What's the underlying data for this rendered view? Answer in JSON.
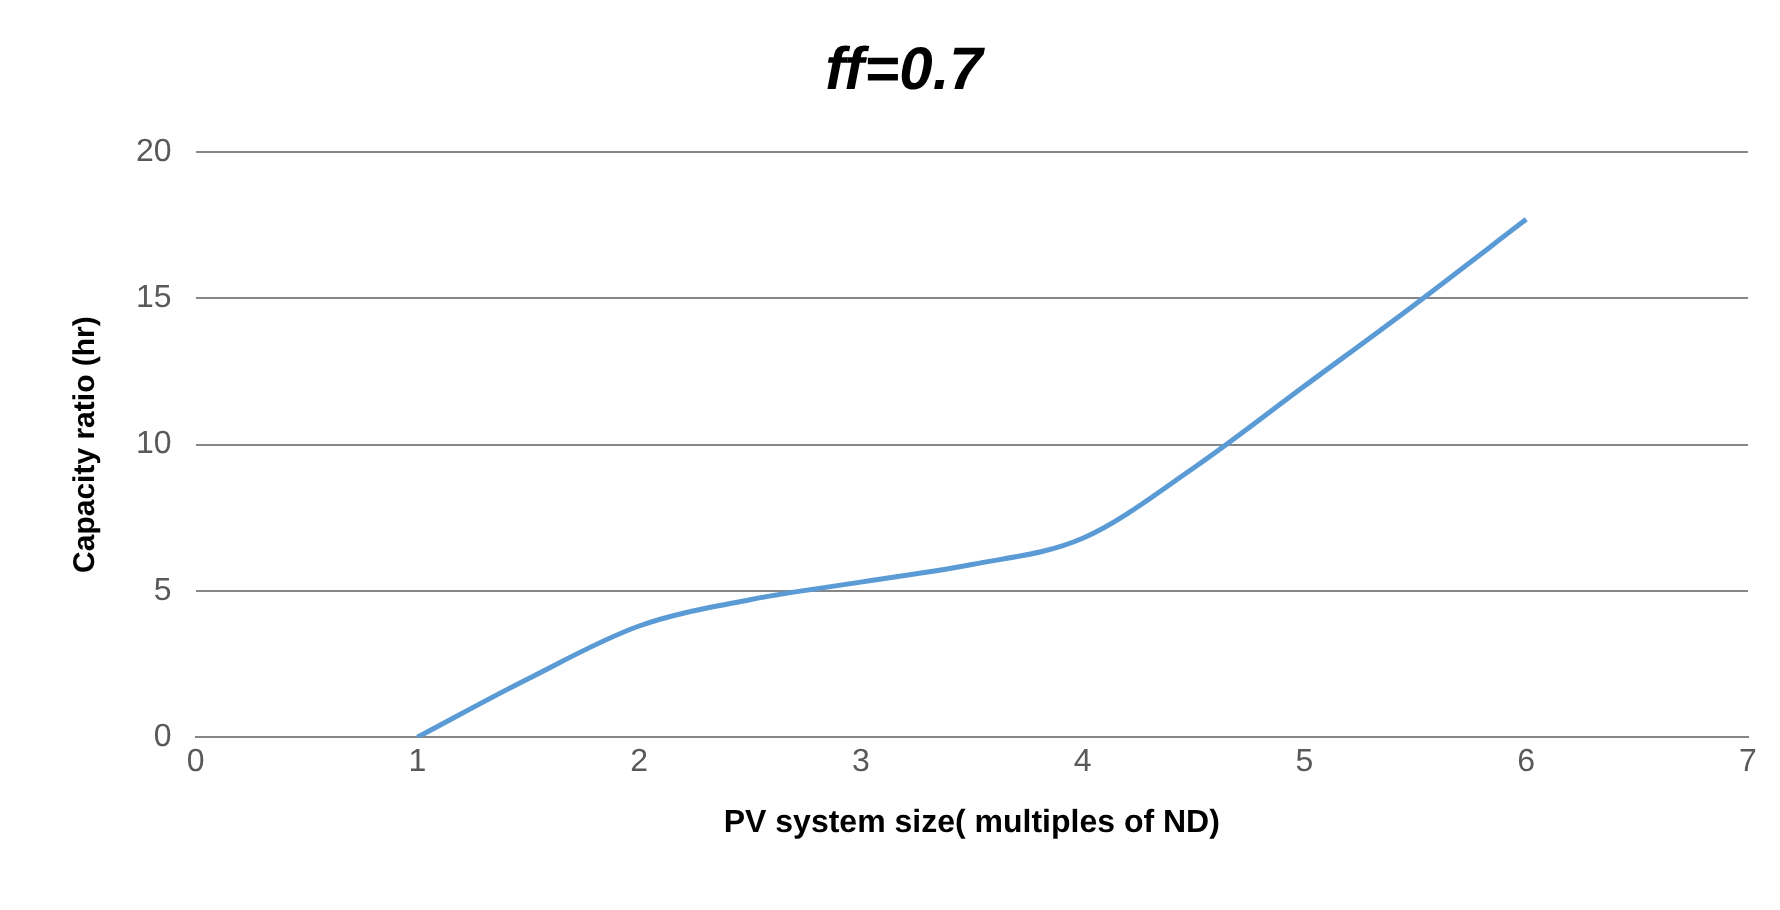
{
  "chart_data": {
    "type": "line",
    "title": "ff=0.7",
    "xlabel": "PV system size( multiples of ND)",
    "ylabel": "Capacity ratio (hr)",
    "x": [
      1,
      1.5,
      2,
      2.5,
      3,
      3.5,
      4,
      4.5,
      5,
      5.5,
      6
    ],
    "series": [
      {
        "color": "#5b9bd5",
        "values": [
          0,
          2,
          3.8,
          4.7,
          5.3,
          5.9,
          6.8,
          9.2,
          12,
          14.8,
          17.7
        ]
      }
    ],
    "xlim": [
      0,
      7
    ],
    "xticks": [
      0,
      1,
      2,
      3,
      4,
      5,
      6,
      7
    ],
    "ylim": [
      0,
      20
    ],
    "yticks": [
      0,
      5,
      10,
      15,
      20
    ],
    "grid": "y",
    "legend": false,
    "marker": "none",
    "line_style": "solid"
  }
}
